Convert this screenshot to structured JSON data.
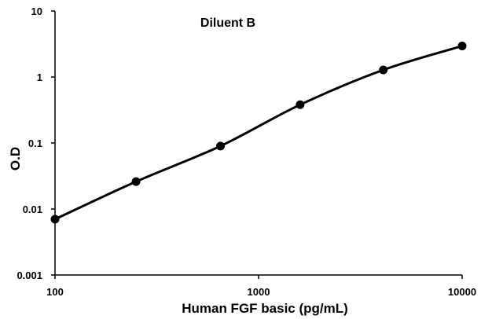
{
  "chart_data": {
    "type": "line",
    "title": "Diluent B",
    "xlabel": "Human FGF basic (pg/mL)",
    "ylabel": "O.D",
    "xscale": "log",
    "yscale": "log",
    "xlim": [
      100,
      10000
    ],
    "ylim": [
      0.001,
      10
    ],
    "x_ticks": [
      "100",
      "1000",
      "10000"
    ],
    "y_ticks": [
      "0.001",
      "0.01",
      "0.1",
      "1",
      "10"
    ],
    "grid": false,
    "legend": "none",
    "series": [
      {
        "x": [
          100,
          250,
          650,
          1600,
          4100,
          10000
        ],
        "values": [
          0.007,
          0.026,
          0.09,
          0.38,
          1.28,
          2.95
        ]
      }
    ],
    "colors": {
      "line": "#000000",
      "marker": "#000000"
    }
  }
}
